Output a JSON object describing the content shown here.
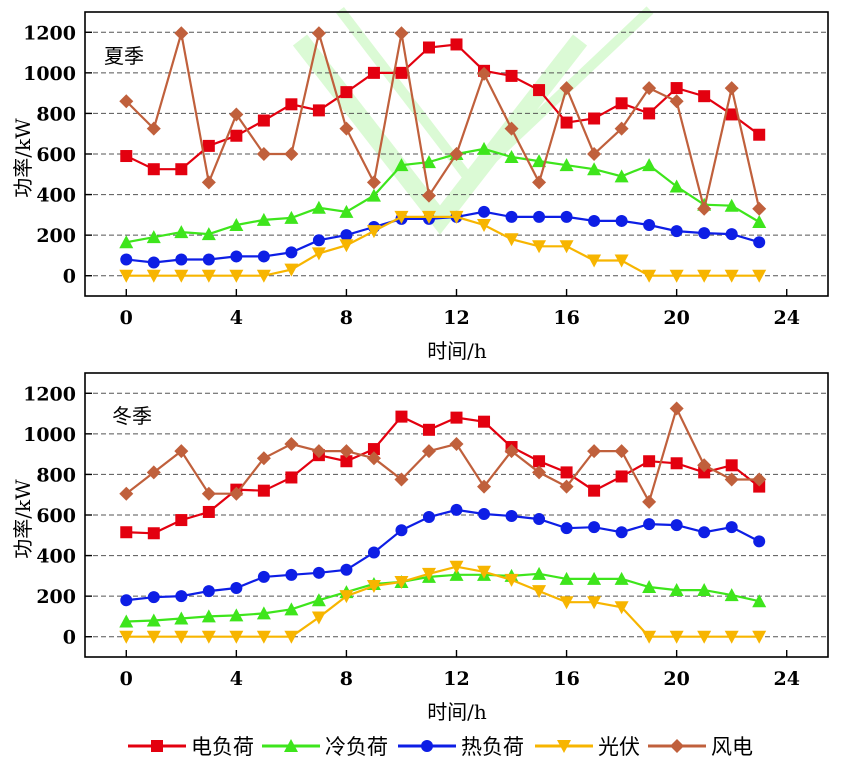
{
  "legend": [
    {
      "name": "电负荷",
      "color": "#e3000f",
      "marker": "square"
    },
    {
      "name": "冷负荷",
      "color": "#3ee51c",
      "marker": "triangle-up"
    },
    {
      "name": "热负荷",
      "color": "#0d1ee5",
      "marker": "circle"
    },
    {
      "name": "光伏",
      "color": "#f7b500",
      "marker": "triangle-down"
    },
    {
      "name": "风电",
      "color": "#c0603c",
      "marker": "diamond"
    }
  ],
  "chart_data": [
    {
      "type": "line",
      "panel_label": "夏季",
      "xlabel": "时间/h",
      "ylabel": "功率/kW",
      "xlim": [
        -1.5,
        25.5
      ],
      "ylim": [
        -100,
        1300
      ],
      "xticks": [
        0,
        4,
        8,
        12,
        16,
        20,
        24
      ],
      "yticks": [
        0,
        200,
        400,
        600,
        800,
        1000,
        1200
      ],
      "grid": true,
      "x": [
        0,
        1,
        2,
        3,
        4,
        5,
        6,
        7,
        8,
        9,
        10,
        11,
        12,
        13,
        14,
        15,
        16,
        17,
        18,
        19,
        20,
        21,
        22,
        23
      ],
      "series": [
        {
          "name": "电负荷",
          "values": [
            590,
            525,
            525,
            640,
            690,
            765,
            845,
            815,
            905,
            1000,
            1000,
            1125,
            1140,
            1010,
            985,
            915,
            755,
            775,
            850,
            800,
            925,
            885,
            795,
            695
          ]
        },
        {
          "name": "冷负荷",
          "values": [
            165,
            190,
            215,
            205,
            250,
            275,
            285,
            335,
            315,
            395,
            545,
            560,
            600,
            625,
            585,
            565,
            545,
            525,
            490,
            545,
            440,
            350,
            345,
            265
          ]
        },
        {
          "name": "热负荷",
          "values": [
            80,
            65,
            80,
            80,
            95,
            95,
            115,
            175,
            200,
            240,
            280,
            280,
            290,
            315,
            290,
            290,
            290,
            270,
            270,
            250,
            220,
            210,
            205,
            165
          ]
        },
        {
          "name": "光伏",
          "values": [
            0,
            0,
            0,
            0,
            0,
            0,
            30,
            110,
            150,
            220,
            290,
            290,
            290,
            250,
            180,
            145,
            145,
            75,
            75,
            0,
            0,
            0,
            0,
            0
          ]
        },
        {
          "name": "风电",
          "values": [
            860,
            725,
            1195,
            460,
            795,
            600,
            600,
            1195,
            725,
            460,
            1195,
            395,
            600,
            995,
            725,
            460,
            925,
            600,
            725,
            925,
            860,
            330,
            925,
            330
          ]
        }
      ]
    },
    {
      "type": "line",
      "panel_label": "冬季",
      "xlabel": "时间/h",
      "ylabel": "功率/kW",
      "xlim": [
        -1.5,
        25.5
      ],
      "ylim": [
        -100,
        1300
      ],
      "xticks": [
        0,
        4,
        8,
        12,
        16,
        20,
        24
      ],
      "yticks": [
        0,
        200,
        400,
        600,
        800,
        1000,
        1200
      ],
      "grid": true,
      "x": [
        0,
        1,
        2,
        3,
        4,
        5,
        6,
        7,
        8,
        9,
        10,
        11,
        12,
        13,
        14,
        15,
        16,
        17,
        18,
        19,
        20,
        21,
        22,
        23
      ],
      "series": [
        {
          "name": "电负荷",
          "values": [
            515,
            510,
            575,
            615,
            725,
            720,
            785,
            895,
            865,
            925,
            1085,
            1020,
            1080,
            1060,
            935,
            865,
            810,
            720,
            790,
            865,
            855,
            810,
            845,
            740
          ]
        },
        {
          "name": "冷负荷",
          "values": [
            75,
            80,
            90,
            100,
            105,
            115,
            135,
            180,
            220,
            260,
            270,
            295,
            305,
            305,
            300,
            310,
            285,
            285,
            285,
            245,
            230,
            230,
            205,
            175
          ]
        },
        {
          "name": "热负荷",
          "values": [
            180,
            195,
            200,
            225,
            240,
            295,
            305,
            315,
            330,
            415,
            525,
            590,
            625,
            605,
            595,
            580,
            535,
            540,
            515,
            555,
            550,
            515,
            540,
            470
          ]
        },
        {
          "name": "光伏",
          "values": [
            0,
            0,
            0,
            0,
            0,
            0,
            0,
            95,
            200,
            250,
            270,
            310,
            345,
            320,
            280,
            225,
            170,
            170,
            145,
            0,
            0,
            0,
            0,
            0
          ]
        },
        {
          "name": "风电",
          "values": [
            705,
            810,
            915,
            705,
            705,
            880,
            950,
            915,
            915,
            880,
            775,
            915,
            950,
            740,
            915,
            810,
            740,
            915,
            915,
            665,
            1125,
            845,
            775,
            775
          ]
        }
      ]
    }
  ]
}
